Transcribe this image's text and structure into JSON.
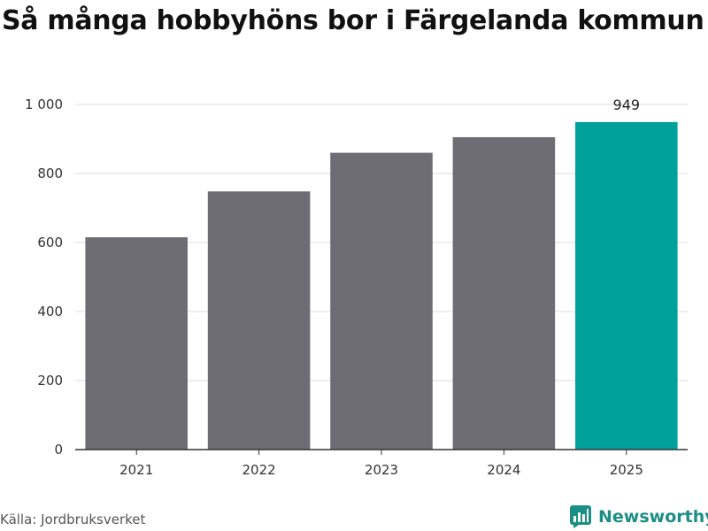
{
  "title": "Så många hobbyhöns bor i Färgelanda kommun",
  "source": "Källa: Jordbruksverket",
  "brand": {
    "name": "Newsworthy",
    "color": "#1b8e86",
    "icon": "newsworthy-logo-icon"
  },
  "colors": {
    "bar_default": "#6d6d73",
    "bar_highlight": "#00a19a",
    "grid": "#dcdcdc",
    "axis": "#333333"
  },
  "chart_data": {
    "type": "bar",
    "categories": [
      "2021",
      "2022",
      "2023",
      "2024",
      "2025"
    ],
    "values": [
      615,
      748,
      860,
      905,
      949
    ],
    "highlight_index": 4,
    "value_labels": [
      {
        "index": 4,
        "text": "949"
      }
    ],
    "yticks": [
      {
        "value": 0,
        "label": "0"
      },
      {
        "value": 200,
        "label": "200"
      },
      {
        "value": 400,
        "label": "400"
      },
      {
        "value": 600,
        "label": "600"
      },
      {
        "value": 800,
        "label": "800"
      },
      {
        "value": 1000,
        "label": "1 000"
      }
    ],
    "ylim": [
      0,
      1000
    ],
    "xlabel": "",
    "ylabel": "",
    "grid": true,
    "legend": "none"
  }
}
